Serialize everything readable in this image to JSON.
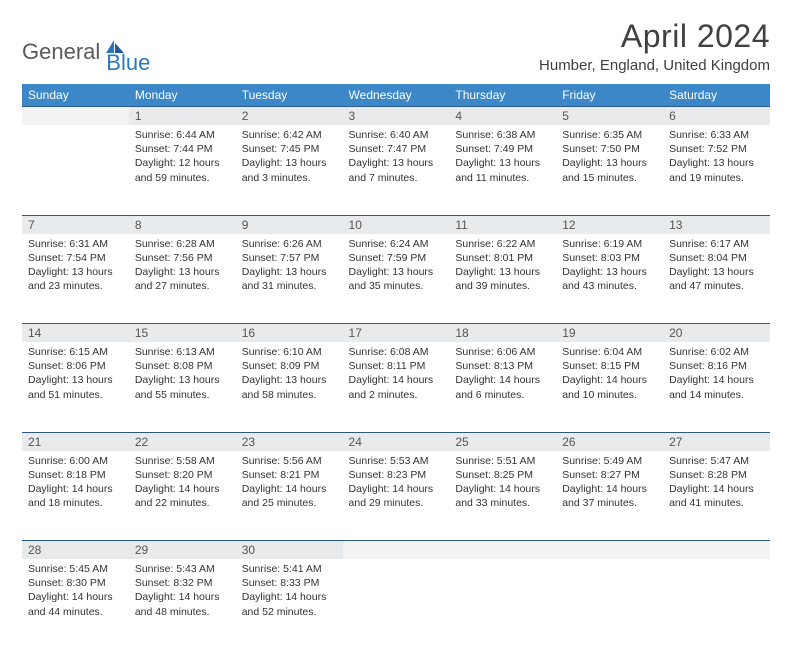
{
  "brand": {
    "part1": "General",
    "part2": "Blue"
  },
  "title": "April 2024",
  "location": "Humber, England, United Kingdom",
  "colors": {
    "header_bg": "#3b87c8",
    "header_text": "#ffffff",
    "daynum_bg": "#e9eaeb",
    "daynum_border": "#2a5a8a",
    "empty_bg": "#f3f3f3",
    "body_text": "#333333",
    "brand_gray": "#5a5a5a",
    "brand_blue": "#2a78bd"
  },
  "weekdays": [
    "Sunday",
    "Monday",
    "Tuesday",
    "Wednesday",
    "Thursday",
    "Friday",
    "Saturday"
  ],
  "weeks": [
    [
      null,
      {
        "d": "1",
        "sr": "6:44 AM",
        "ss": "7:44 PM",
        "dl": "12 hours and 59 minutes."
      },
      {
        "d": "2",
        "sr": "6:42 AM",
        "ss": "7:45 PM",
        "dl": "13 hours and 3 minutes."
      },
      {
        "d": "3",
        "sr": "6:40 AM",
        "ss": "7:47 PM",
        "dl": "13 hours and 7 minutes."
      },
      {
        "d": "4",
        "sr": "6:38 AM",
        "ss": "7:49 PM",
        "dl": "13 hours and 11 minutes."
      },
      {
        "d": "5",
        "sr": "6:35 AM",
        "ss": "7:50 PM",
        "dl": "13 hours and 15 minutes."
      },
      {
        "d": "6",
        "sr": "6:33 AM",
        "ss": "7:52 PM",
        "dl": "13 hours and 19 minutes."
      }
    ],
    [
      {
        "d": "7",
        "sr": "6:31 AM",
        "ss": "7:54 PM",
        "dl": "13 hours and 23 minutes."
      },
      {
        "d": "8",
        "sr": "6:28 AM",
        "ss": "7:56 PM",
        "dl": "13 hours and 27 minutes."
      },
      {
        "d": "9",
        "sr": "6:26 AM",
        "ss": "7:57 PM",
        "dl": "13 hours and 31 minutes."
      },
      {
        "d": "10",
        "sr": "6:24 AM",
        "ss": "7:59 PM",
        "dl": "13 hours and 35 minutes."
      },
      {
        "d": "11",
        "sr": "6:22 AM",
        "ss": "8:01 PM",
        "dl": "13 hours and 39 minutes."
      },
      {
        "d": "12",
        "sr": "6:19 AM",
        "ss": "8:03 PM",
        "dl": "13 hours and 43 minutes."
      },
      {
        "d": "13",
        "sr": "6:17 AM",
        "ss": "8:04 PM",
        "dl": "13 hours and 47 minutes."
      }
    ],
    [
      {
        "d": "14",
        "sr": "6:15 AM",
        "ss": "8:06 PM",
        "dl": "13 hours and 51 minutes."
      },
      {
        "d": "15",
        "sr": "6:13 AM",
        "ss": "8:08 PM",
        "dl": "13 hours and 55 minutes."
      },
      {
        "d": "16",
        "sr": "6:10 AM",
        "ss": "8:09 PM",
        "dl": "13 hours and 58 minutes."
      },
      {
        "d": "17",
        "sr": "6:08 AM",
        "ss": "8:11 PM",
        "dl": "14 hours and 2 minutes."
      },
      {
        "d": "18",
        "sr": "6:06 AM",
        "ss": "8:13 PM",
        "dl": "14 hours and 6 minutes."
      },
      {
        "d": "19",
        "sr": "6:04 AM",
        "ss": "8:15 PM",
        "dl": "14 hours and 10 minutes."
      },
      {
        "d": "20",
        "sr": "6:02 AM",
        "ss": "8:16 PM",
        "dl": "14 hours and 14 minutes."
      }
    ],
    [
      {
        "d": "21",
        "sr": "6:00 AM",
        "ss": "8:18 PM",
        "dl": "14 hours and 18 minutes."
      },
      {
        "d": "22",
        "sr": "5:58 AM",
        "ss": "8:20 PM",
        "dl": "14 hours and 22 minutes."
      },
      {
        "d": "23",
        "sr": "5:56 AM",
        "ss": "8:21 PM",
        "dl": "14 hours and 25 minutes."
      },
      {
        "d": "24",
        "sr": "5:53 AM",
        "ss": "8:23 PM",
        "dl": "14 hours and 29 minutes."
      },
      {
        "d": "25",
        "sr": "5:51 AM",
        "ss": "8:25 PM",
        "dl": "14 hours and 33 minutes."
      },
      {
        "d": "26",
        "sr": "5:49 AM",
        "ss": "8:27 PM",
        "dl": "14 hours and 37 minutes."
      },
      {
        "d": "27",
        "sr": "5:47 AM",
        "ss": "8:28 PM",
        "dl": "14 hours and 41 minutes."
      }
    ],
    [
      {
        "d": "28",
        "sr": "5:45 AM",
        "ss": "8:30 PM",
        "dl": "14 hours and 44 minutes."
      },
      {
        "d": "29",
        "sr": "5:43 AM",
        "ss": "8:32 PM",
        "dl": "14 hours and 48 minutes."
      },
      {
        "d": "30",
        "sr": "5:41 AM",
        "ss": "8:33 PM",
        "dl": "14 hours and 52 minutes."
      },
      null,
      null,
      null,
      null
    ]
  ],
  "labels": {
    "sunrise": "Sunrise:",
    "sunset": "Sunset:",
    "daylight": "Daylight:"
  }
}
